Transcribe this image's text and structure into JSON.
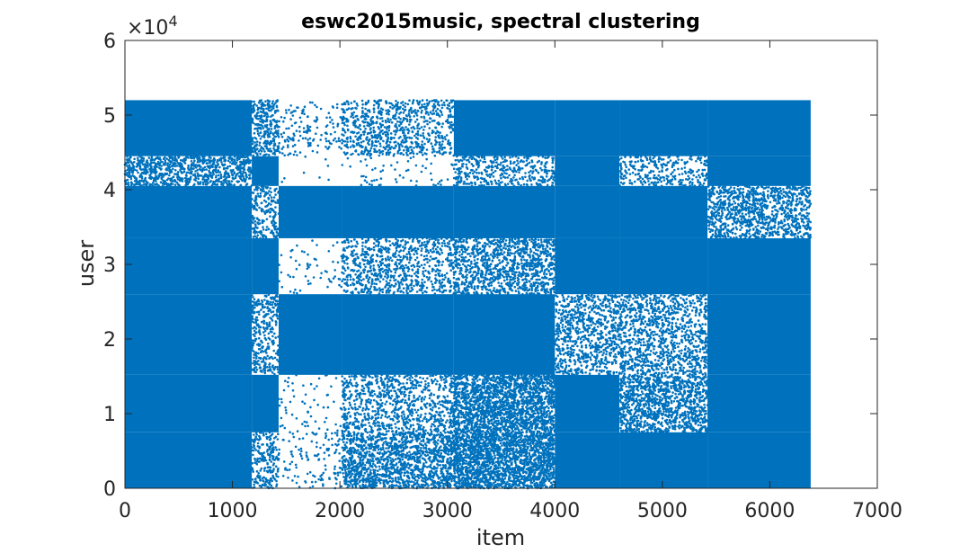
{
  "chart_data": {
    "type": "scatter",
    "title": "eswc2015music, spectral clustering",
    "xlabel": "item",
    "ylabel": "user",
    "xlim": [
      0,
      7000
    ],
    "ylim": [
      0,
      60000
    ],
    "x_ticks": [
      0,
      1000,
      2000,
      3000,
      4000,
      5000,
      6000,
      7000
    ],
    "x_tick_labels": [
      "0",
      "1000",
      "2000",
      "3000",
      "4000",
      "5000",
      "6000",
      "7000"
    ],
    "y_ticks": [
      0,
      10000,
      20000,
      30000,
      40000,
      50000,
      60000
    ],
    "y_tick_labels": [
      "0",
      "1",
      "2",
      "3",
      "4",
      "5",
      "6"
    ],
    "y_exponent_label": "×10",
    "y_exponent_power": "4",
    "grid": false,
    "legend": "none",
    "marker_color": "#0072BD",
    "data_extent": {
      "x_max": 6380,
      "y_max": 52000
    },
    "item_cluster_bounds": [
      0,
      1180,
      1430,
      2020,
      3060,
      4000,
      4600,
      5420,
      6380
    ],
    "user_cluster_bounds": [
      0,
      7500,
      15200,
      26000,
      33500,
      40500,
      44500,
      52000
    ],
    "block_density": [
      [
        1.0,
        0.35,
        0.08,
        0.55,
        0.85,
        1.0,
        1.0,
        1.0
      ],
      [
        1.0,
        1.0,
        0.04,
        0.3,
        0.75,
        1.0,
        0.55,
        1.0
      ],
      [
        1.0,
        0.35,
        1.0,
        1.0,
        1.0,
        0.35,
        0.35,
        1.0
      ],
      [
        1.0,
        1.0,
        0.04,
        0.3,
        0.45,
        1.0,
        1.0,
        1.0
      ],
      [
        1.0,
        0.35,
        1.0,
        1.0,
        1.0,
        1.0,
        1.0,
        0.45
      ],
      [
        0.55,
        1.0,
        0.01,
        0.04,
        0.3,
        1.0,
        0.25,
        1.0
      ],
      [
        1.0,
        0.45,
        0.1,
        0.3,
        1.0,
        1.0,
        1.0,
        1.0
      ]
    ]
  }
}
